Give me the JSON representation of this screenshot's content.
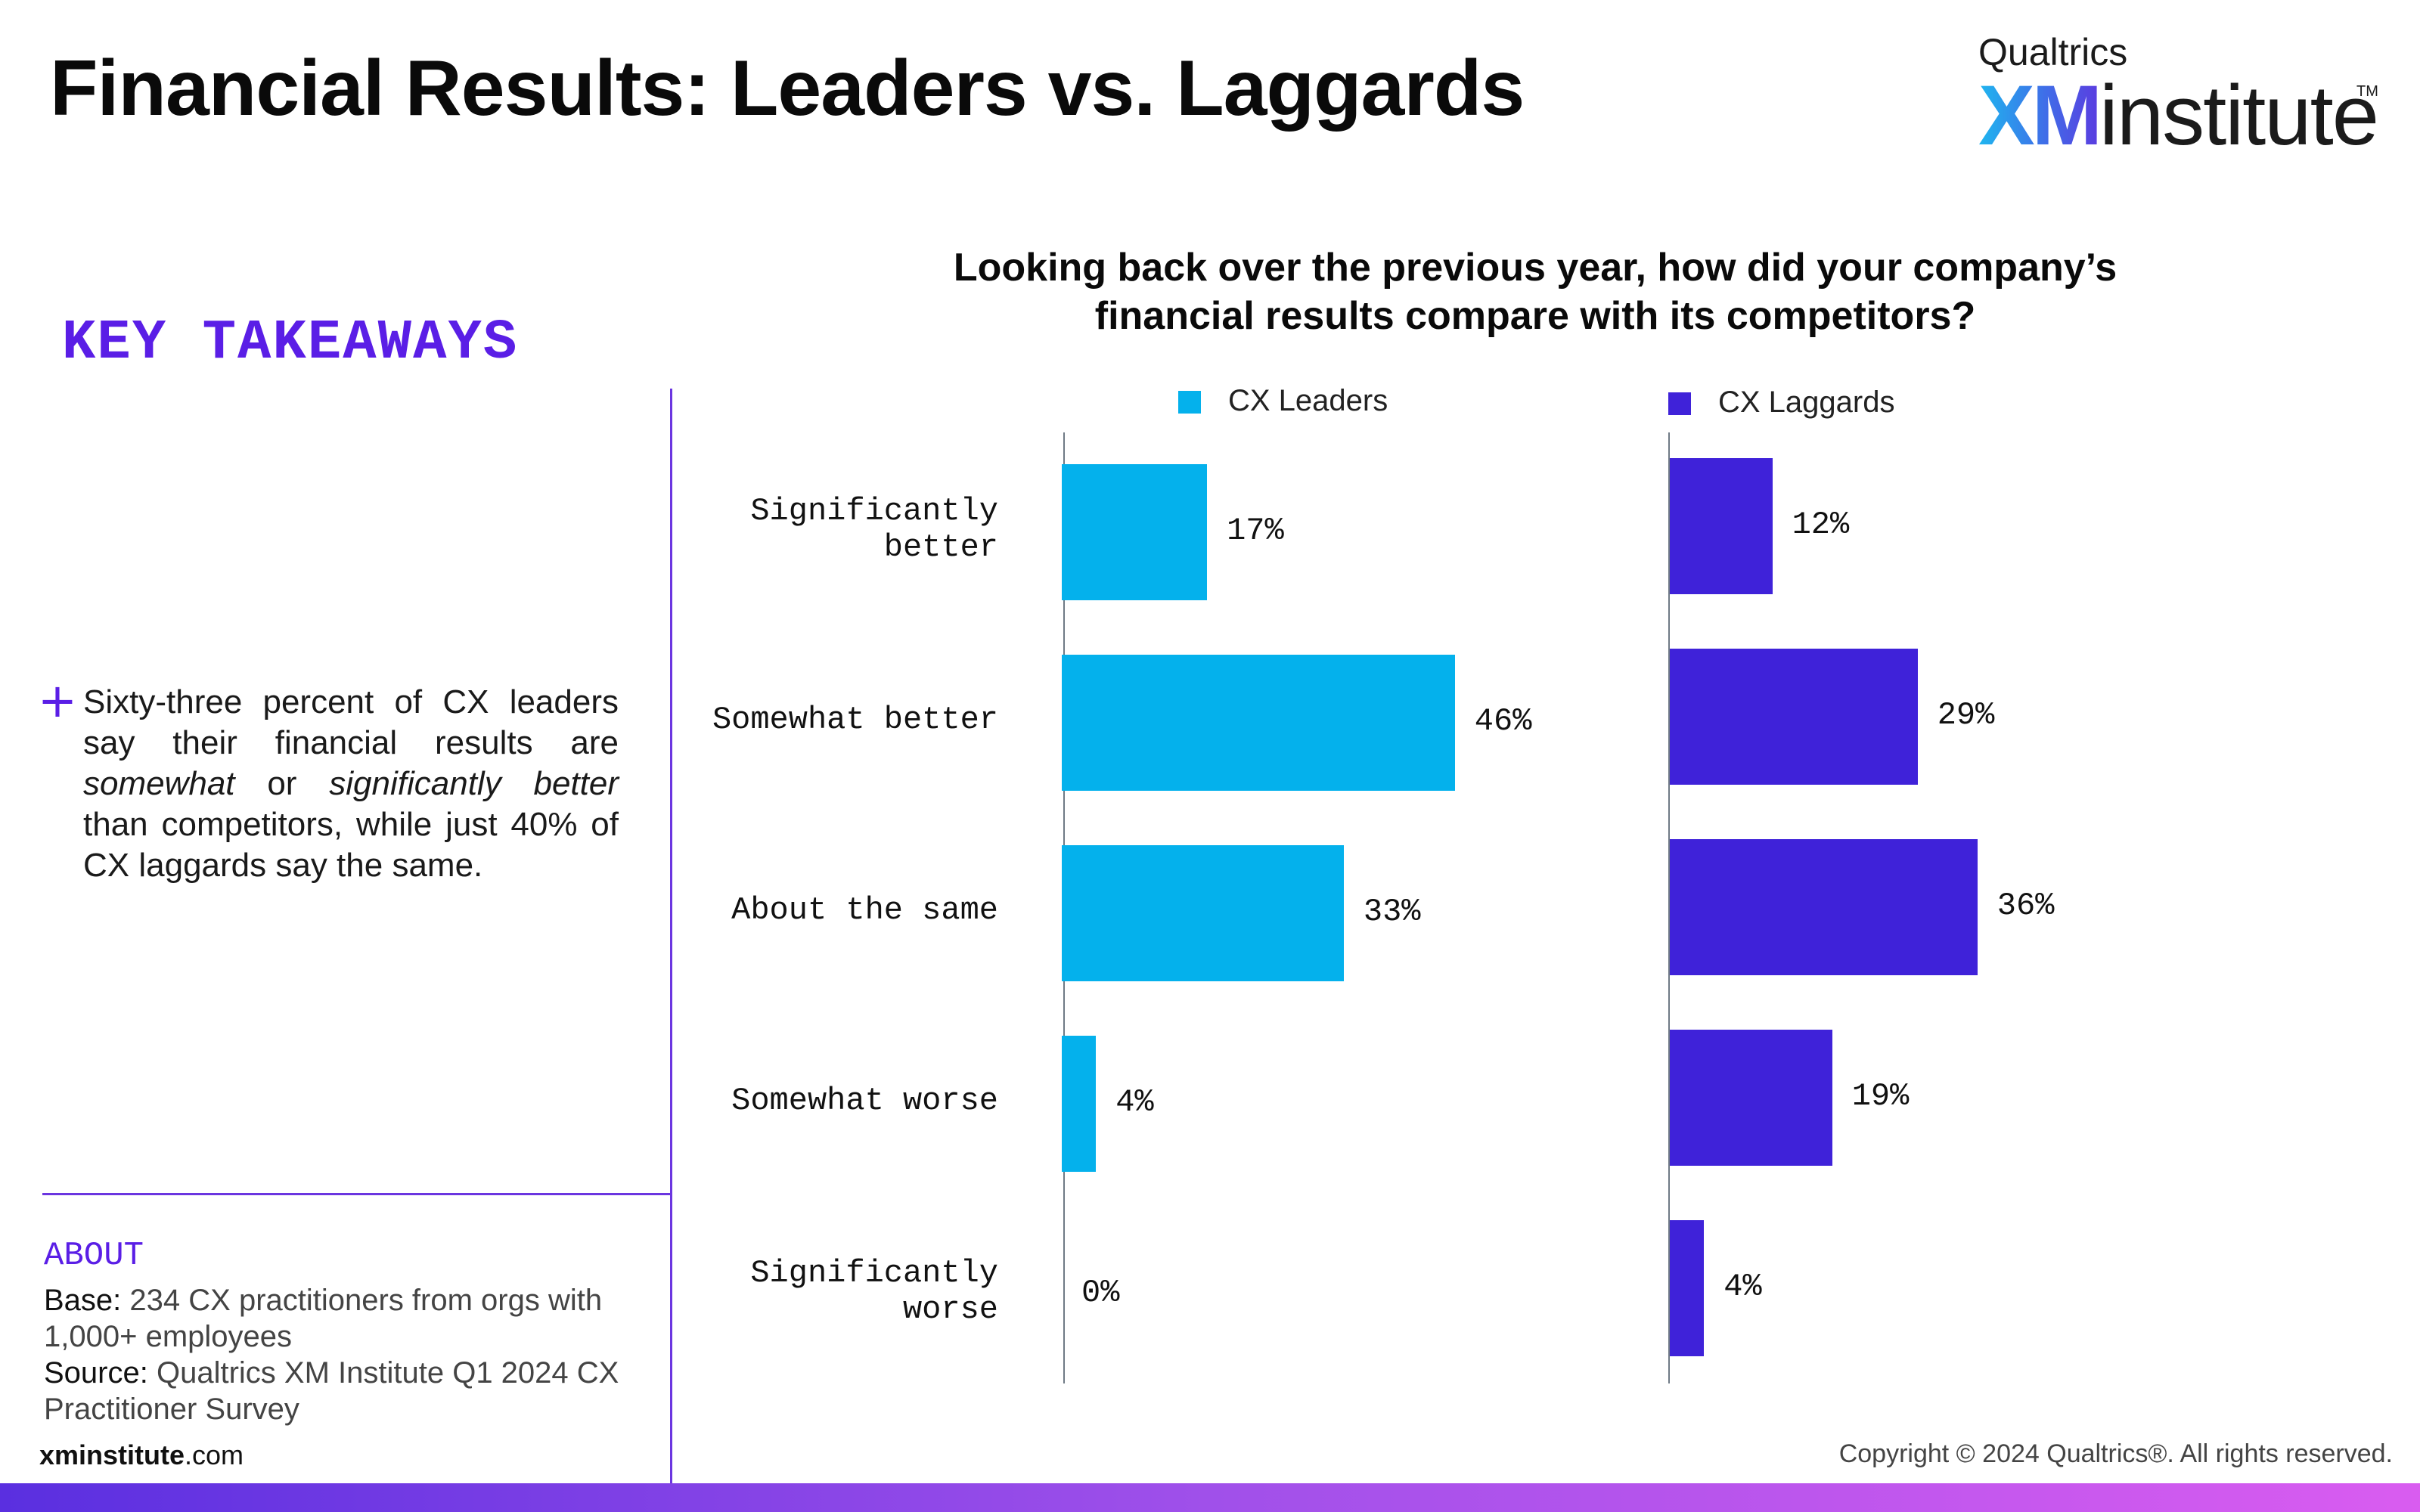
{
  "page": {
    "title": "Financial Results: Leaders vs. Laggards",
    "logo": {
      "top": "Qualtrics",
      "xm": "XM",
      "institute": "institute",
      "tm": "TM"
    },
    "takeaways": {
      "heading": "KEY TAKEAWAYS",
      "bullet_icon": "+",
      "text_part1": "Sixty-three percent of CX leaders say their financial results are ",
      "text_em1": "somewhat",
      "text_part2": " or ",
      "text_em2": "significantly better",
      "text_part3": " than competitors, while just 40% of CX laggards say the same."
    },
    "about": {
      "heading": "ABOUT",
      "base_label": "Base:",
      "base_text": " 234 CX practitioners from orgs with 1,000+ employees",
      "source_label": "Source:",
      "source_text": " Qualtrics XM Institute Q1 2024 CX Practitioner Survey"
    },
    "footer": {
      "site_bold": "xminstitute",
      "site_rest": ".com",
      "copyright": "Copyright © 2024 Qualtrics®. All rights reserved."
    },
    "colors": {
      "accent": "#5a1ee6",
      "leaders": "#04b1ec",
      "laggards": "#3f22d9"
    }
  },
  "chart_data": {
    "type": "bar",
    "orientation": "horizontal",
    "title": "Looking back over the previous year, how did your company’s financial results compare with its competitors?",
    "categories": [
      "Significantly better",
      "Somewhat better",
      "About the same",
      "Somewhat worse",
      "Significantly worse"
    ],
    "series": [
      {
        "name": "CX Leaders",
        "values": [
          17,
          46,
          33,
          4,
          0
        ],
        "labels": [
          "17%",
          "46%",
          "33%",
          "4%",
          "0%"
        ],
        "color": "#04b1ec"
      },
      {
        "name": "CX Laggards",
        "values": [
          12,
          29,
          36,
          19,
          4
        ],
        "labels": [
          "12%",
          "29%",
          "36%",
          "19%",
          "4%"
        ],
        "color": "#3f22d9"
      }
    ],
    "unit": "%",
    "legend": "top",
    "grid": false
  }
}
